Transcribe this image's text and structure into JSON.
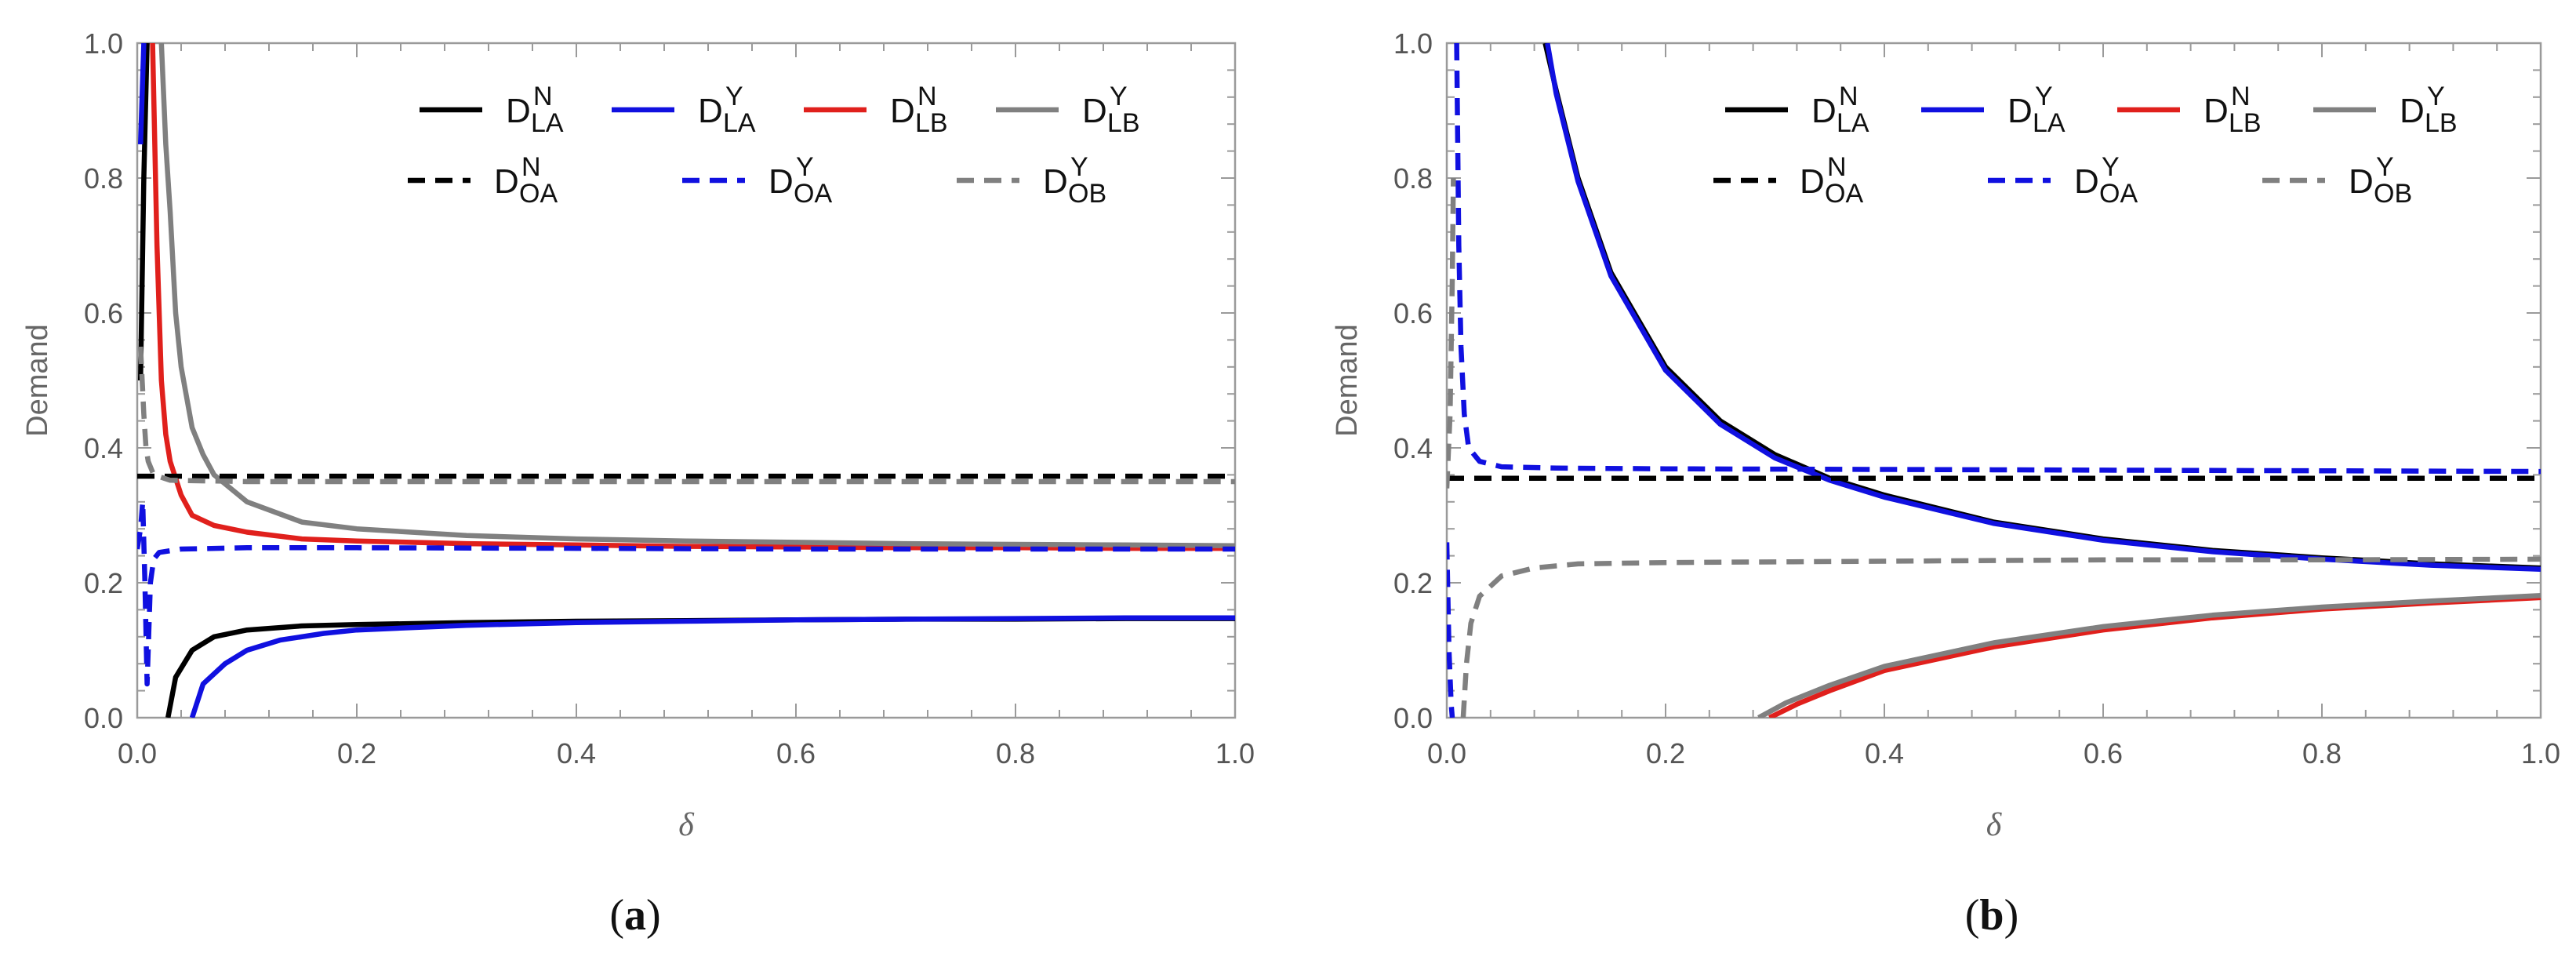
{
  "chart_data": [
    {
      "panel_label": "(a)",
      "type": "line",
      "xlabel": "δ",
      "ylabel": "Demand",
      "xlim": [
        0,
        1
      ],
      "ylim": [
        0,
        1
      ],
      "x_ticks": [
        "0.0",
        "0.2",
        "0.4",
        "0.6",
        "0.8",
        "1.0"
      ],
      "y_ticks": [
        "0.0",
        "0.2",
        "0.4",
        "0.6",
        "0.8",
        "1.0"
      ],
      "grid": false,
      "legend_position": "top-right",
      "series": [
        {
          "name": "D_LA^N",
          "base": "D",
          "sub": "LA",
          "sup": "N",
          "color": "#000000",
          "style": "solid",
          "points": [
            [
              0.003,
              0.5
            ],
            [
              0.006,
              0.8
            ],
            [
              0.009,
              1.0
            ]
          ]
        },
        {
          "name": "D_LA^N",
          "base": "D",
          "sub": "LA",
          "sup": "N",
          "color": "#000000",
          "style": "solid",
          "points": [
            [
              0.028,
              0.0
            ],
            [
              0.035,
              0.06
            ],
            [
              0.05,
              0.1
            ],
            [
              0.07,
              0.12
            ],
            [
              0.1,
              0.13
            ],
            [
              0.15,
              0.136
            ],
            [
              0.2,
              0.138
            ],
            [
              0.3,
              0.141
            ],
            [
              0.4,
              0.143
            ],
            [
              0.5,
              0.144
            ],
            [
              0.6,
              0.145
            ],
            [
              0.7,
              0.146
            ],
            [
              0.8,
              0.146
            ],
            [
              0.9,
              0.147
            ],
            [
              1.0,
              0.147
            ]
          ]
        },
        {
          "name": "D_LA^Y",
          "base": "D",
          "sub": "LA",
          "sup": "Y",
          "color": "#1010e0",
          "style": "solid",
          "points": [
            [
              0.003,
              0.85
            ],
            [
              0.006,
              1.0
            ]
          ]
        },
        {
          "name": "D_LA^Y",
          "base": "D",
          "sub": "LA",
          "sup": "Y",
          "color": "#1010e0",
          "style": "solid",
          "points": [
            [
              0.05,
              0.0
            ],
            [
              0.06,
              0.05
            ],
            [
              0.08,
              0.08
            ],
            [
              0.1,
              0.1
            ],
            [
              0.13,
              0.115
            ],
            [
              0.17,
              0.125
            ],
            [
              0.2,
              0.13
            ],
            [
              0.3,
              0.137
            ],
            [
              0.4,
              0.141
            ],
            [
              0.5,
              0.143
            ],
            [
              0.6,
              0.145
            ],
            [
              0.7,
              0.146
            ],
            [
              0.8,
              0.147
            ],
            [
              0.9,
              0.148
            ],
            [
              1.0,
              0.148
            ]
          ]
        },
        {
          "name": "D_LB^N",
          "base": "D",
          "sub": "LB",
          "sup": "N",
          "color": "#e0201c",
          "style": "solid",
          "points": [
            [
              0.014,
              1.0
            ],
            [
              0.018,
              0.7
            ],
            [
              0.022,
              0.5
            ],
            [
              0.026,
              0.42
            ],
            [
              0.03,
              0.38
            ],
            [
              0.04,
              0.33
            ],
            [
              0.05,
              0.3
            ],
            [
              0.07,
              0.285
            ],
            [
              0.1,
              0.275
            ],
            [
              0.15,
              0.265
            ],
            [
              0.2,
              0.262
            ],
            [
              0.3,
              0.258
            ],
            [
              0.4,
              0.256
            ],
            [
              0.5,
              0.254
            ],
            [
              0.6,
              0.253
            ],
            [
              0.7,
              0.252
            ],
            [
              0.8,
              0.252
            ],
            [
              0.9,
              0.251
            ],
            [
              1.0,
              0.251
            ]
          ]
        },
        {
          "name": "D_LB^Y",
          "base": "D",
          "sub": "LB",
          "sup": "Y",
          "color": "#808080",
          "style": "solid",
          "points": [
            [
              0.022,
              1.0
            ],
            [
              0.026,
              0.85
            ],
            [
              0.03,
              0.75
            ],
            [
              0.035,
              0.6
            ],
            [
              0.04,
              0.52
            ],
            [
              0.05,
              0.43
            ],
            [
              0.06,
              0.39
            ],
            [
              0.07,
              0.36
            ],
            [
              0.1,
              0.32
            ],
            [
              0.15,
              0.29
            ],
            [
              0.2,
              0.28
            ],
            [
              0.3,
              0.27
            ],
            [
              0.4,
              0.265
            ],
            [
              0.5,
              0.262
            ],
            [
              0.6,
              0.26
            ],
            [
              0.7,
              0.258
            ],
            [
              0.8,
              0.257
            ],
            [
              0.9,
              0.256
            ],
            [
              1.0,
              0.255
            ]
          ]
        },
        {
          "name": "D_OA^N",
          "base": "D",
          "sub": "OA",
          "sup": "N",
          "color": "#000000",
          "style": "dashed",
          "points": [
            [
              0.0,
              0.358
            ],
            [
              0.2,
              0.358
            ],
            [
              0.4,
              0.358
            ],
            [
              0.6,
              0.358
            ],
            [
              0.8,
              0.358
            ],
            [
              1.0,
              0.358
            ]
          ]
        },
        {
          "name": "D_OA^Y",
          "base": "D",
          "sub": "OA",
          "sup": "Y",
          "color": "#1010e0",
          "style": "dashed",
          "points": [
            [
              0.0,
              0.25
            ],
            [
              0.003,
              0.28
            ],
            [
              0.005,
              0.32
            ],
            [
              0.007,
              0.2
            ],
            [
              0.009,
              0.05
            ],
            [
              0.012,
              0.2
            ],
            [
              0.015,
              0.235
            ],
            [
              0.02,
              0.245
            ],
            [
              0.04,
              0.25
            ],
            [
              0.1,
              0.252
            ],
            [
              0.2,
              0.252
            ],
            [
              0.4,
              0.251
            ],
            [
              0.6,
              0.25
            ],
            [
              0.8,
              0.25
            ],
            [
              1.0,
              0.25
            ]
          ]
        },
        {
          "name": "D_OB^Y",
          "base": "D",
          "sub": "OB",
          "sup": "Y",
          "color": "#808080",
          "style": "dashed",
          "points": [
            [
              0.003,
              0.55
            ],
            [
              0.006,
              0.45
            ],
            [
              0.008,
              0.4
            ],
            [
              0.01,
              0.38
            ],
            [
              0.015,
              0.36
            ],
            [
              0.03,
              0.352
            ],
            [
              0.1,
              0.35
            ],
            [
              0.2,
              0.35
            ],
            [
              0.4,
              0.35
            ],
            [
              0.6,
              0.35
            ],
            [
              0.8,
              0.35
            ],
            [
              1.0,
              0.35
            ]
          ]
        }
      ],
      "legend_rows": [
        [
          0,
          2,
          4,
          5
        ],
        [
          6,
          7,
          8
        ]
      ]
    },
    {
      "panel_label": "(b)",
      "type": "line",
      "xlabel": "δ",
      "ylabel": "Demand",
      "xlim": [
        0,
        1
      ],
      "ylim": [
        0,
        1
      ],
      "x_ticks": [
        "0.0",
        "0.2",
        "0.4",
        "0.6",
        "0.8",
        "1.0"
      ],
      "y_ticks": [
        "0.0",
        "0.2",
        "0.4",
        "0.6",
        "0.8",
        "1.0"
      ],
      "grid": false,
      "legend_position": "top-right",
      "series": [
        {
          "name": "D_LA^N",
          "base": "D",
          "sub": "LA",
          "sup": "N",
          "color": "#000000",
          "style": "solid",
          "points": [
            [
              0.09,
              1.0
            ],
            [
              0.1,
              0.93
            ],
            [
              0.12,
              0.8
            ],
            [
              0.15,
              0.66
            ],
            [
              0.2,
              0.52
            ],
            [
              0.25,
              0.44
            ],
            [
              0.3,
              0.39
            ],
            [
              0.35,
              0.355
            ],
            [
              0.4,
              0.33
            ],
            [
              0.5,
              0.29
            ],
            [
              0.6,
              0.265
            ],
            [
              0.7,
              0.248
            ],
            [
              0.8,
              0.237
            ],
            [
              0.9,
              0.228
            ],
            [
              1.0,
              0.222
            ]
          ]
        },
        {
          "name": "D_LA^Y",
          "base": "D",
          "sub": "LA",
          "sup": "Y",
          "color": "#1010e0",
          "style": "solid",
          "points": [
            [
              0.092,
              1.0
            ],
            [
              0.1,
              0.925
            ],
            [
              0.12,
              0.795
            ],
            [
              0.15,
              0.655
            ],
            [
              0.2,
              0.515
            ],
            [
              0.25,
              0.435
            ],
            [
              0.3,
              0.385
            ],
            [
              0.35,
              0.352
            ],
            [
              0.4,
              0.327
            ],
            [
              0.5,
              0.288
            ],
            [
              0.6,
              0.263
            ],
            [
              0.7,
              0.246
            ],
            [
              0.8,
              0.235
            ],
            [
              0.9,
              0.226
            ],
            [
              1.0,
              0.22
            ]
          ]
        },
        {
          "name": "D_LB^N",
          "base": "D",
          "sub": "LB",
          "sup": "N",
          "color": "#e0201c",
          "style": "solid",
          "points": [
            [
              0.295,
              0.0
            ],
            [
              0.32,
              0.02
            ],
            [
              0.35,
              0.04
            ],
            [
              0.4,
              0.07
            ],
            [
              0.5,
              0.105
            ],
            [
              0.6,
              0.13
            ],
            [
              0.7,
              0.148
            ],
            [
              0.8,
              0.161
            ],
            [
              0.9,
              0.17
            ],
            [
              1.0,
              0.178
            ]
          ]
        },
        {
          "name": "D_LB^Y",
          "base": "D",
          "sub": "LB",
          "sup": "Y",
          "color": "#808080",
          "style": "solid",
          "points": [
            [
              0.285,
              0.0
            ],
            [
              0.31,
              0.022
            ],
            [
              0.35,
              0.048
            ],
            [
              0.4,
              0.076
            ],
            [
              0.5,
              0.111
            ],
            [
              0.6,
              0.135
            ],
            [
              0.7,
              0.152
            ],
            [
              0.8,
              0.164
            ],
            [
              0.9,
              0.173
            ],
            [
              1.0,
              0.181
            ]
          ]
        },
        {
          "name": "D_OA^N",
          "base": "D",
          "sub": "OA",
          "sup": "N",
          "color": "#000000",
          "style": "dashed",
          "points": [
            [
              0.0,
              0.355
            ],
            [
              0.2,
              0.355
            ],
            [
              0.4,
              0.355
            ],
            [
              0.6,
              0.355
            ],
            [
              0.8,
              0.355
            ],
            [
              1.0,
              0.355
            ]
          ]
        },
        {
          "name": "D_OA^Y",
          "base": "D",
          "sub": "OA",
          "sup": "Y",
          "color": "#1010e0",
          "style": "dashed",
          "points": [
            [
              0.0,
              0.26
            ],
            [
              0.002,
              0.1
            ],
            [
              0.004,
              0.02
            ],
            [
              0.005,
              0.0
            ]
          ]
        },
        {
          "name": "D_OA^Y",
          "base": "D",
          "sub": "OA",
          "sup": "Y",
          "color": "#1010e0",
          "style": "dashed",
          "points": [
            [
              0.009,
              1.0
            ],
            [
              0.011,
              0.7
            ],
            [
              0.013,
              0.55
            ],
            [
              0.016,
              0.45
            ],
            [
              0.02,
              0.4
            ],
            [
              0.03,
              0.38
            ],
            [
              0.05,
              0.372
            ],
            [
              0.1,
              0.37
            ],
            [
              0.2,
              0.369
            ],
            [
              0.4,
              0.368
            ],
            [
              0.6,
              0.367
            ],
            [
              0.8,
              0.366
            ],
            [
              1.0,
              0.365
            ]
          ]
        },
        {
          "name": "D_OB^Y",
          "base": "D",
          "sub": "OB",
          "sup": "Y",
          "color": "#808080",
          "style": "dashed",
          "points": [
            [
              0.0,
              0.34
            ],
            [
              0.003,
              0.45
            ],
            [
              0.005,
              0.65
            ],
            [
              0.006,
              0.8
            ]
          ]
        },
        {
          "name": "D_OB^Y",
          "base": "D",
          "sub": "OB",
          "sup": "Y",
          "color": "#808080",
          "style": "dashed",
          "points": [
            [
              0.015,
              0.0
            ],
            [
              0.018,
              0.08
            ],
            [
              0.022,
              0.14
            ],
            [
              0.03,
              0.18
            ],
            [
              0.05,
              0.21
            ],
            [
              0.08,
              0.222
            ],
            [
              0.12,
              0.228
            ],
            [
              0.2,
              0.23
            ],
            [
              0.4,
              0.232
            ],
            [
              0.6,
              0.234
            ],
            [
              0.8,
              0.234
            ],
            [
              1.0,
              0.235
            ]
          ]
        }
      ],
      "legend_rows": [
        [
          0,
          1,
          2,
          3
        ],
        [
          4,
          5,
          7
        ]
      ]
    }
  ]
}
